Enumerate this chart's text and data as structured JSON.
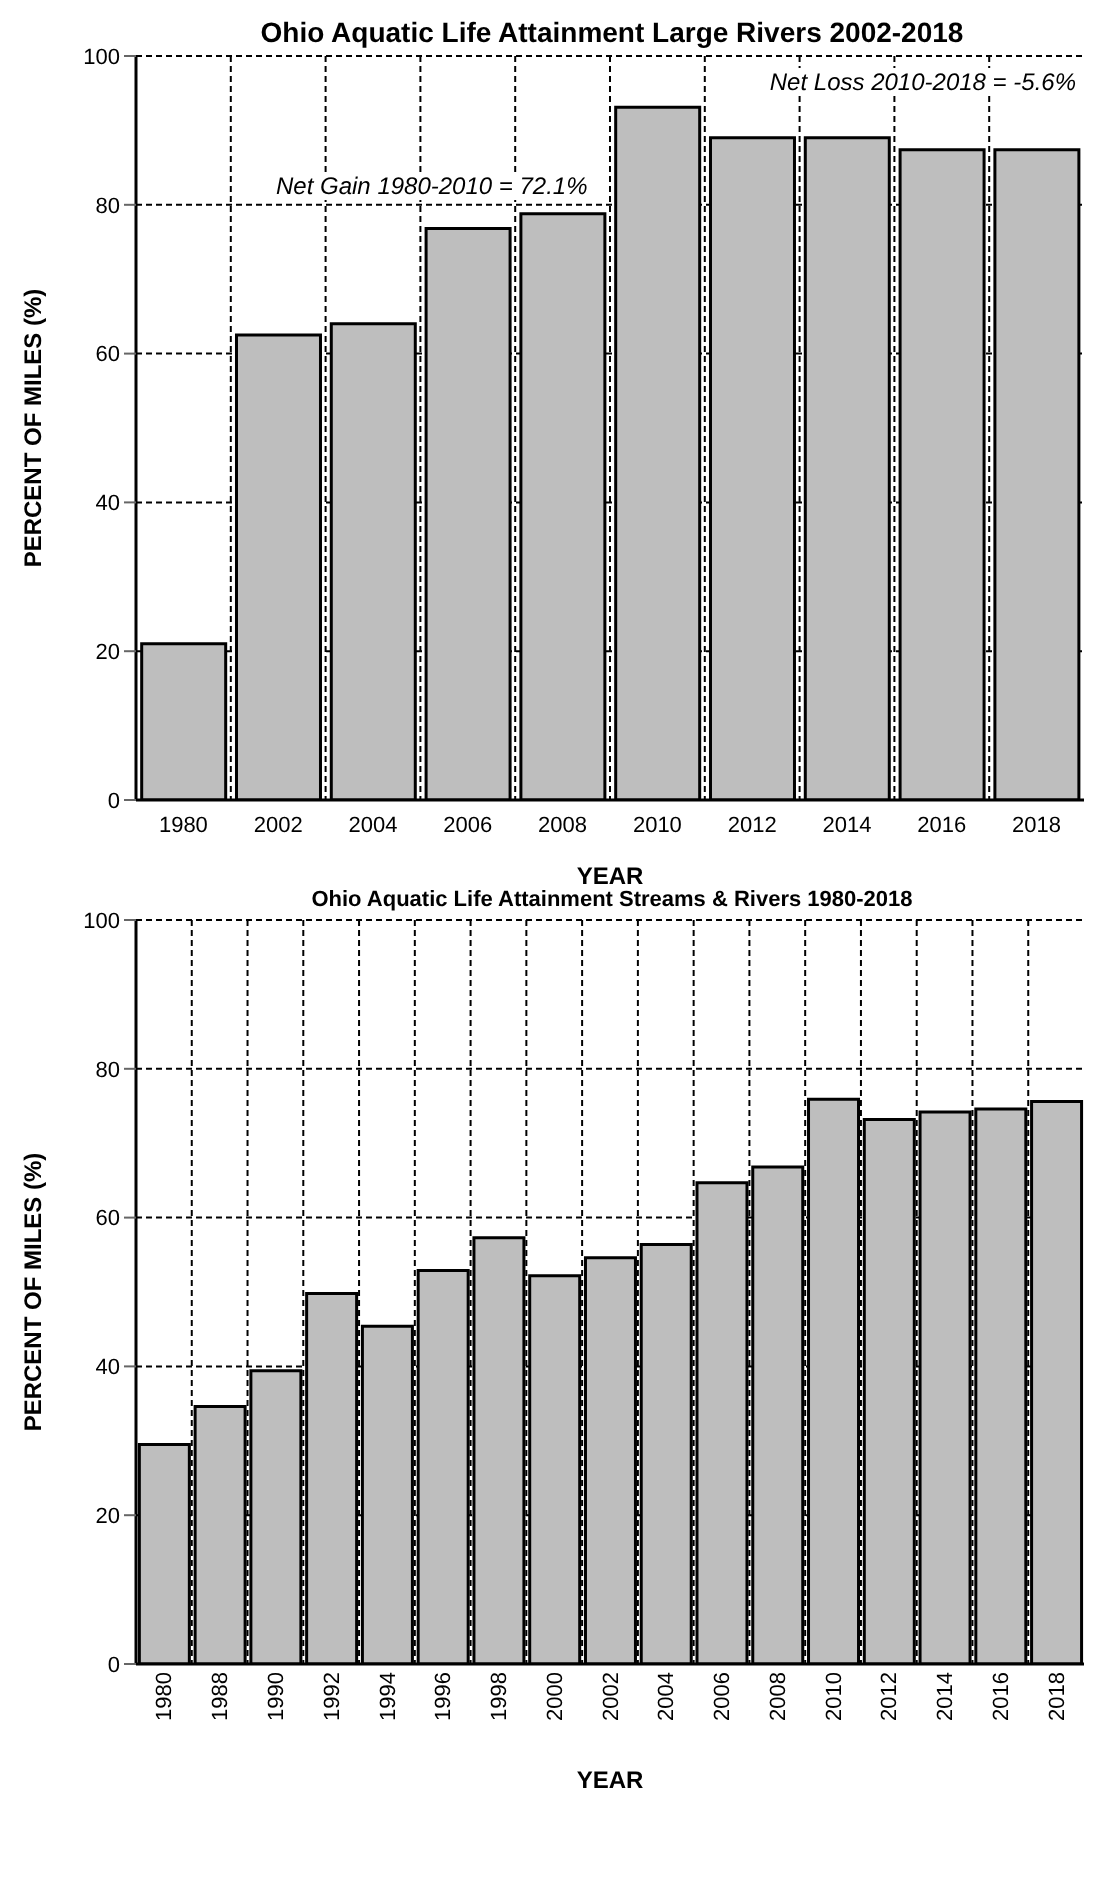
{
  "chart_data": [
    {
      "type": "bar",
      "title": "Ohio Aquatic Life Attainment Large Rivers 2002-2018",
      "xlabel": "YEAR",
      "ylabel": "PERCENT OF MILES (%)",
      "categories": [
        "1980",
        "2002",
        "2004",
        "2006",
        "2008",
        "2010",
        "2012",
        "2014",
        "2016",
        "2018"
      ],
      "values": [
        21.0,
        62.5,
        64.0,
        76.8,
        78.8,
        93.1,
        89.0,
        89.0,
        87.4,
        87.4
      ],
      "color": "#bebebe",
      "ylim": [
        0,
        100
      ],
      "yticks": [
        0,
        20,
        40,
        60,
        80,
        100
      ],
      "grid": true,
      "annotations": [
        "Net Gain 1980-2010 = 72.1%",
        "Net Loss 2010-2018 = -5.6%"
      ]
    },
    {
      "type": "bar",
      "title": "Ohio Aquatic Life Attainment Streams & Rivers 1980-2018",
      "xlabel": "YEAR",
      "ylabel": "PERCENT OF MILES (%)",
      "categories": [
        "1980",
        "1988",
        "1990",
        "1992",
        "1994",
        "1996",
        "1998",
        "2000",
        "2002",
        "2004",
        "2006",
        "2008",
        "2010",
        "2012",
        "2014",
        "2016",
        "2018"
      ],
      "values": [
        29.5,
        34.6,
        39.4,
        49.8,
        45.4,
        52.9,
        57.3,
        52.2,
        54.6,
        56.4,
        64.7,
        66.8,
        75.9,
        73.2,
        74.2,
        74.6,
        75.6
      ],
      "color": "#bebebe",
      "ylim": [
        0,
        100
      ],
      "yticks": [
        0,
        20,
        40,
        60,
        80,
        100
      ],
      "grid": true
    }
  ]
}
